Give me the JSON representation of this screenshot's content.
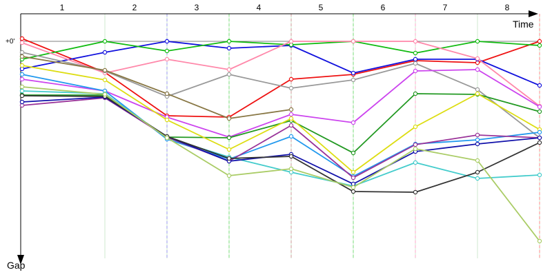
{
  "chart_data": {
    "type": "line",
    "x_axis_label": "Time",
    "y_axis_label": "Gap",
    "zero_label": "+0'",
    "lap_labels": [
      "1",
      "2",
      "3",
      "4",
      "5",
      "6",
      "7",
      "8"
    ],
    "grid": "vertical lap markers",
    "note": "y values are gap to leader in relative units (0 = leader, larger = further behind)",
    "series": [
      {
        "color": "#ee1111",
        "values": [
          -0.4,
          4.5,
          10.8,
          11.0,
          5.5,
          4.8,
          2.8,
          3.1,
          0.0
        ]
      },
      {
        "color": "#1111dd",
        "values": [
          4.0,
          1.6,
          0.0,
          1.0,
          0.6,
          4.6,
          2.6,
          2.6,
          6.4
        ]
      },
      {
        "color": "#11bb11",
        "values": [
          2.6,
          0.0,
          1.4,
          0.0,
          0.5,
          0.0,
          1.7,
          0.0,
          0.6
        ]
      },
      {
        "color": "#ff88aa",
        "values": [
          0.2,
          4.6,
          2.6,
          4.1,
          0.0,
          0.0,
          0.0,
          2.5,
          9.4
        ]
      },
      {
        "color": "#999999",
        "values": [
          1.6,
          4.3,
          8.0,
          4.8,
          6.8,
          5.6,
          3.2,
          7.0,
          14.0
        ]
      },
      {
        "color": "#887744",
        "values": [
          2.2,
          4.2,
          7.6,
          11.2,
          9.9,
          null,
          null,
          null,
          null
        ]
      },
      {
        "color": "#cc44ee",
        "values": [
          5.5,
          7.2,
          11.0,
          13.9,
          10.6,
          11.8,
          4.3,
          4.1,
          9.5
        ]
      },
      {
        "color": "#229922",
        "values": [
          7.8,
          7.8,
          13.9,
          14.0,
          11.5,
          16.2,
          7.6,
          7.7,
          10.2
        ]
      },
      {
        "color": "#dddd11",
        "values": [
          3.5,
          5.6,
          11.4,
          15.7,
          11.2,
          19.0,
          12.4,
          7.6,
          12.8
        ]
      },
      {
        "color": "#2299ee",
        "values": [
          4.8,
          7.2,
          14.2,
          17.1,
          13.8,
          19.6,
          14.9,
          14.3,
          13.2
        ]
      },
      {
        "color": "#44cccc",
        "values": [
          7.2,
          7.6,
          14.0,
          16.8,
          19.0,
          21.0,
          17.6,
          19.9,
          19.4
        ]
      },
      {
        "color": "#993399",
        "values": [
          9.3,
          8.2,
          13.9,
          17.4,
          12.2,
          19.8,
          15.0,
          13.6,
          14.0
        ]
      },
      {
        "color": "#1111aa",
        "values": [
          8.8,
          8.1,
          13.8,
          17.4,
          16.4,
          20.7,
          16.0,
          14.9,
          14.0
        ]
      },
      {
        "color": "#333333",
        "values": [
          7.9,
          8.0,
          13.8,
          17.0,
          16.7,
          21.8,
          21.9,
          19.0,
          14.7
        ]
      },
      {
        "color": "#aacc66",
        "values": [
          6.6,
          7.7,
          14.0,
          19.5,
          18.5,
          21.2,
          15.6,
          17.3,
          29.0
        ]
      }
    ],
    "pit_markers": [
      {
        "color": "#9999ee",
        "lap": 3
      },
      {
        "color": "#77dd77",
        "lap": 4
      },
      {
        "color": "#cc9999",
        "lap": 5
      },
      {
        "color": "#77dd77",
        "lap": 6
      },
      {
        "color": "#ffaacc",
        "lap": 7
      },
      {
        "color": "#ff8888",
        "lap": 9
      }
    ]
  }
}
